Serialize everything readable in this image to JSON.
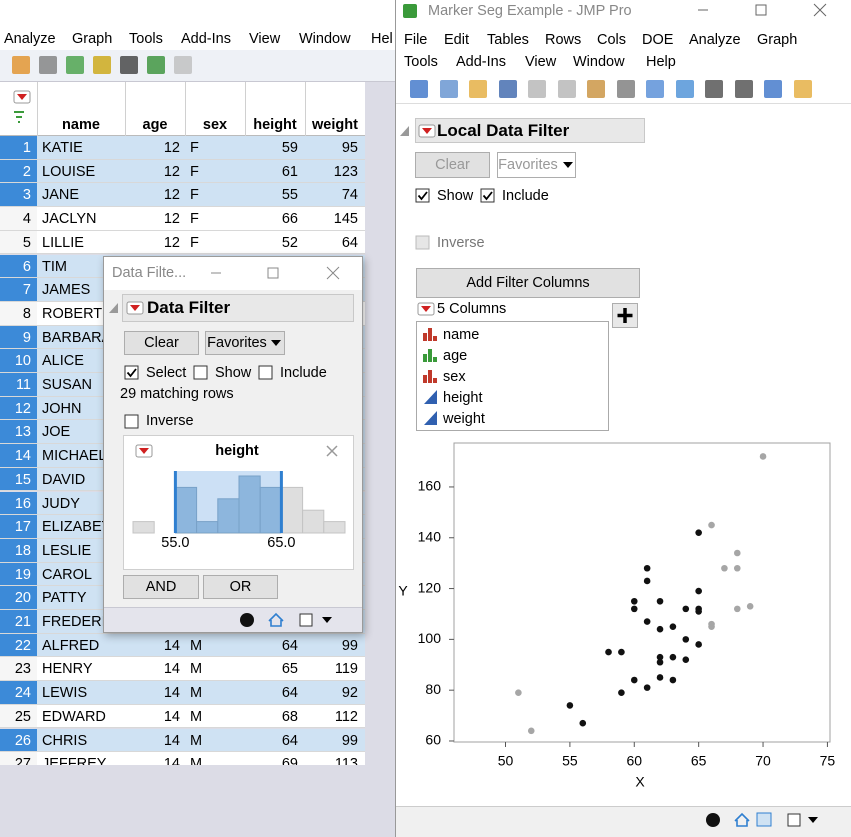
{
  "back_window": {
    "menu": [
      "Analyze",
      "Graph",
      "Tools",
      "Add-Ins",
      "View",
      "Window",
      "Hel"
    ],
    "columns": [
      "name",
      "age",
      "sex",
      "height",
      "weight"
    ],
    "rows": [
      {
        "cells": [
          1,
          "KATIE",
          12,
          "F",
          59,
          95
        ],
        "selected": true
      },
      {
        "cells": [
          2,
          "LOUISE",
          12,
          "F",
          61,
          123
        ],
        "selected": true
      },
      {
        "cells": [
          3,
          "JANE",
          12,
          "F",
          55,
          74
        ],
        "selected": true
      },
      {
        "cells": [
          4,
          "JACLYN",
          12,
          "F",
          66,
          145
        ],
        "selected": false
      },
      {
        "cells": [
          5,
          "LILLIE",
          12,
          "F",
          52,
          64
        ],
        "selected": false
      },
      {
        "cells": [
          6,
          "TIM"
        ],
        "selected": true
      },
      {
        "cells": [
          7,
          "JAMES"
        ],
        "selected": true
      },
      {
        "cells": [
          8,
          "ROBERT"
        ],
        "selected": false
      },
      {
        "cells": [
          9,
          "BARBARA"
        ],
        "selected": true
      },
      {
        "cells": [
          10,
          "ALICE"
        ],
        "selected": true
      },
      {
        "cells": [
          11,
          "SUSAN"
        ],
        "selected": true
      },
      {
        "cells": [
          12,
          "JOHN"
        ],
        "selected": true
      },
      {
        "cells": [
          13,
          "JOE"
        ],
        "selected": true
      },
      {
        "cells": [
          14,
          "MICHAEL"
        ],
        "selected": true
      },
      {
        "cells": [
          15,
          "DAVID"
        ],
        "selected": true
      },
      {
        "cells": [
          16,
          "JUDY"
        ],
        "selected": true
      },
      {
        "cells": [
          17,
          "ELIZABETH"
        ],
        "selected": true
      },
      {
        "cells": [
          18,
          "LESLIE"
        ],
        "selected": true
      },
      {
        "cells": [
          19,
          "CAROL"
        ],
        "selected": true
      },
      {
        "cells": [
          20,
          "PATTY"
        ],
        "selected": true
      },
      {
        "cells": [
          21,
          "FREDERICK"
        ],
        "selected": true
      },
      {
        "cells": [
          22,
          "ALFRED",
          14,
          "M",
          64,
          99
        ],
        "selected": true
      },
      {
        "cells": [
          23,
          "HENRY",
          14,
          "M",
          65,
          119
        ],
        "selected": false
      },
      {
        "cells": [
          24,
          "LEWIS",
          14,
          "M",
          64,
          92
        ],
        "selected": true
      },
      {
        "cells": [
          25,
          "EDWARD",
          14,
          "M",
          68,
          112
        ],
        "selected": false
      },
      {
        "cells": [
          26,
          "CHRIS",
          14,
          "M",
          64,
          99
        ],
        "selected": true
      },
      {
        "cells": [
          27,
          "JEFFREY",
          14,
          "M",
          69,
          113
        ],
        "selected": false
      }
    ]
  },
  "data_filter_window": {
    "title": "Data Filte...",
    "header": "Data Filter",
    "clear": "Clear",
    "favorites": "Favorites",
    "select": "Select",
    "show": "Show",
    "include": "Include",
    "matching": "29 matching rows",
    "inverse": "Inverse",
    "column": "height",
    "histogram": {
      "bins": [
        51,
        53,
        55,
        57,
        59,
        61,
        63,
        65,
        67,
        69,
        71
      ],
      "counts": [
        1,
        0,
        4,
        1,
        3,
        5,
        4,
        4,
        2,
        1
      ],
      "selection": [
        {
          "value": 55,
          "label": "55.0"
        },
        {
          "value": 65,
          "label": "65.0"
        }
      ]
    },
    "and": "AND",
    "or": "OR"
  },
  "jmp_window": {
    "title": "Marker Seg Example - JMP Pro",
    "menu_row1": [
      "File",
      "Edit",
      "Tables",
      "Rows",
      "Cols",
      "DOE",
      "Analyze",
      "Graph"
    ],
    "menu_row2": [
      "Tools",
      "Add-Ins",
      "View",
      "Window",
      "Help"
    ],
    "local_data_filter": {
      "title": "Local Data Filter",
      "clear": "Clear",
      "favorites": "Favorites",
      "show": "Show",
      "include": "Include",
      "inverse": "Inverse",
      "add_filter_columns": "Add Filter Columns",
      "columns_label": "5 Columns",
      "columns": [
        {
          "name": "name",
          "modeling_type": "nominal"
        },
        {
          "name": "age",
          "modeling_type": "ordinal"
        },
        {
          "name": "sex",
          "modeling_type": "nominal"
        },
        {
          "name": "height",
          "modeling_type": "continuous"
        },
        {
          "name": "weight",
          "modeling_type": "continuous"
        }
      ]
    }
  },
  "chart_data": {
    "type": "scatter",
    "xlabel": "X",
    "ylabel": "Y",
    "xlim": [
      46,
      75.2
    ],
    "ylim": [
      59.6,
      177.3
    ],
    "xticks": [
      50,
      55,
      60,
      65,
      70,
      75
    ],
    "yticks": [
      60,
      80,
      100,
      120,
      140,
      160
    ],
    "series": [
      {
        "color": "#111111",
        "x": [
          65,
          61,
          61,
          65,
          60,
          62,
          60,
          64,
          65,
          65,
          61,
          62,
          63,
          64,
          65,
          62,
          63,
          62,
          64,
          58,
          59,
          62,
          63,
          60,
          61,
          59,
          55,
          56
        ],
        "values": [
          142,
          128,
          123,
          119,
          115,
          115,
          112,
          112,
          112,
          111,
          107,
          104,
          105,
          100,
          98,
          93,
          93,
          91,
          92,
          95,
          95,
          85,
          84,
          84,
          81,
          79,
          74,
          67
        ]
      },
      {
        "color": "#a6a6a6",
        "x": [
          70,
          66,
          68,
          68,
          67,
          66,
          66,
          68,
          69,
          51,
          52
        ],
        "values": [
          172,
          145,
          134,
          128,
          128,
          106,
          105,
          112,
          113,
          79,
          64
        ]
      }
    ]
  }
}
